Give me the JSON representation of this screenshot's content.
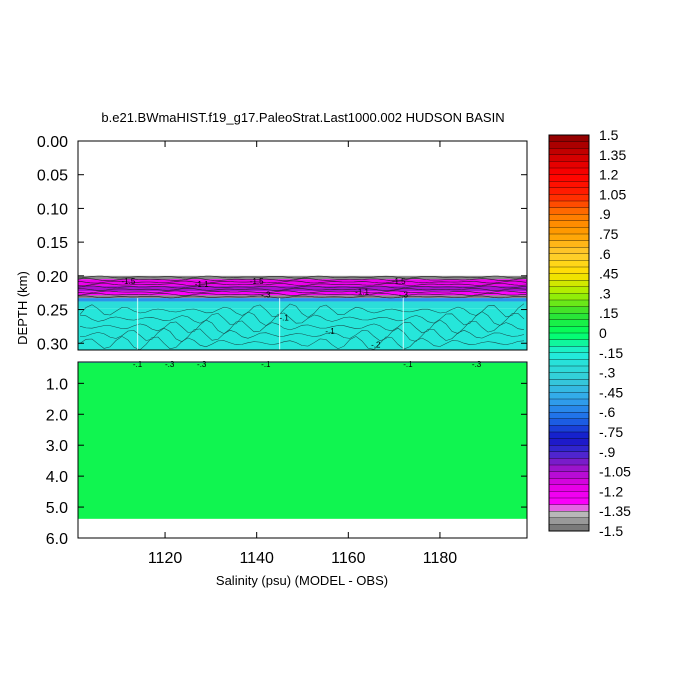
{
  "chart_data": {
    "type": "heatmap",
    "title": "b.e21.BWmaHIST.f19_g17.PaleoStrat.Last1000.002 HUDSON BASIN",
    "xlabel": "Salinity (psu) (MODEL - OBS)",
    "ylabel": "DEPTH (km)",
    "x_ticks": [
      "1120",
      "1140",
      "1160",
      "1180"
    ],
    "x_tick_values": [
      1120,
      1140,
      1160,
      1180
    ],
    "xlim": [
      1101,
      1199
    ],
    "upper_panel": {
      "ylim": [
        0.0,
        0.31
      ],
      "y_ticks": [
        "0.00",
        "0.05",
        "0.10",
        "0.15",
        "0.20",
        "0.25",
        "0.30"
      ],
      "y_tick_values": [
        0.0,
        0.05,
        0.1,
        0.15,
        0.2,
        0.25,
        0.3
      ],
      "contour_labels": [
        {
          "text": "-1.5",
          "x": 1112,
          "y": 0.208
        },
        {
          "text": "-1.5",
          "x": 1140,
          "y": 0.208
        },
        {
          "text": "-1.5",
          "x": 1171,
          "y": 0.208
        },
        {
          "text": "-1.1",
          "x": 1128,
          "y": 0.212
        },
        {
          "text": "-1.1",
          "x": 1163,
          "y": 0.223
        },
        {
          "text": "-.3",
          "x": 1142,
          "y": 0.228
        },
        {
          "text": "-.3",
          "x": 1172,
          "y": 0.228
        },
        {
          "text": "-.1",
          "x": 1146,
          "y": 0.262
        },
        {
          "text": "-.1",
          "x": 1156,
          "y": 0.282
        },
        {
          "text": "-.2",
          "x": 1166,
          "y": 0.302
        }
      ]
    },
    "lower_panel": {
      "ylim": [
        0.31,
        6.0
      ],
      "y_ticks": [
        "1.0",
        "2.0",
        "3.0",
        "4.0",
        "5.0",
        "6.0"
      ],
      "y_tick_values": [
        1.0,
        2.0,
        3.0,
        4.0,
        5.0,
        6.0
      ],
      "data_bottom": 5.38,
      "contour_labels": [
        {
          "text": "-.1",
          "x": 1114,
          "y": 0.37
        },
        {
          "text": "-.3",
          "x": 1121,
          "y": 0.37
        },
        {
          "text": "-.3",
          "x": 1128,
          "y": 0.37
        },
        {
          "text": "-.1",
          "x": 1142,
          "y": 0.37
        },
        {
          "text": "-.1",
          "x": 1173,
          "y": 0.37
        },
        {
          "text": "-.3",
          "x": 1188,
          "y": 0.37
        }
      ]
    },
    "layers": [
      {
        "from": 0.2,
        "to": 0.205,
        "level": -1.45
      },
      {
        "from": 0.205,
        "to": 0.215,
        "level": -1.2
      },
      {
        "from": 0.215,
        "to": 0.223,
        "level": -1.05
      },
      {
        "from": 0.223,
        "to": 0.229,
        "level": -1.3
      },
      {
        "from": 0.229,
        "to": 0.233,
        "level": -1.45
      },
      {
        "from": 0.233,
        "to": 0.238,
        "level": -0.55
      },
      {
        "from": 0.238,
        "to": 0.248,
        "level": -0.25
      },
      {
        "from": 0.248,
        "to": 0.31,
        "level": -0.2
      },
      {
        "from": 0.31,
        "to": 0.34,
        "level": -0.25
      },
      {
        "from": 0.34,
        "to": 5.38,
        "level": 0.05
      }
    ],
    "colorbar": {
      "min": -1.5,
      "max": 1.5,
      "step": 0.05,
      "labels": [
        "1.5",
        "1.35",
        "1.2",
        "1.05",
        ".9",
        ".75",
        ".6",
        ".45",
        ".3",
        ".15",
        "0",
        "-.15",
        "-.3",
        "-.45",
        "-.6",
        "-.75",
        "-.9",
        "-1.05",
        "-1.2",
        "-1.35",
        "-1.5"
      ],
      "label_values": [
        1.5,
        1.35,
        1.2,
        1.05,
        0.9,
        0.75,
        0.6,
        0.45,
        0.3,
        0.15,
        0,
        -0.15,
        -0.3,
        -0.45,
        -0.6,
        -0.75,
        -0.9,
        -1.05,
        -1.2,
        -1.35,
        -1.5
      ]
    }
  }
}
